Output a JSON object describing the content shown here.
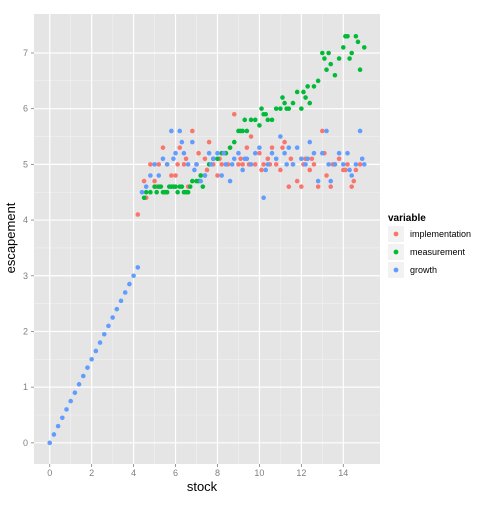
{
  "chart_data": {
    "type": "scatter",
    "xlabel": "stock",
    "ylabel": "escapement",
    "xlim": [
      -0.75,
      15.75
    ],
    "ylim": [
      -0.38,
      7.7
    ],
    "x_ticks": [
      0,
      2,
      4,
      6,
      8,
      10,
      12,
      14
    ],
    "y_ticks": [
      0,
      1,
      2,
      3,
      4,
      5,
      6,
      7
    ],
    "grid": true,
    "legend": {
      "title": "variable",
      "position": "right"
    },
    "colors": {
      "panel": "#E5E5E5",
      "grid_major": "#FFFFFF",
      "grid_minor": "#F2F2F2",
      "implementation": "#F8766D",
      "measurement": "#00BA38",
      "growth": "#619CFF"
    },
    "series": [
      {
        "name": "implementation",
        "color": "#F8766D",
        "x": [
          4.2,
          4.5,
          4.6,
          4.8,
          5.0,
          5.2,
          5.4,
          5.6,
          5.8,
          6.0,
          6.2,
          6.4,
          6.6,
          6.8,
          7.0,
          7.2,
          7.4,
          7.6,
          7.8,
          8.0,
          8.2,
          8.4,
          8.6,
          8.8,
          9.0,
          9.2,
          9.4,
          9.6,
          9.8,
          10.0,
          10.2,
          10.4,
          10.6,
          10.8,
          11.0,
          11.2,
          11.4,
          11.6,
          11.8,
          12.0,
          12.2,
          12.4,
          12.6,
          12.8,
          13.0,
          13.2,
          13.4,
          13.6,
          13.8,
          14.0,
          14.2,
          14.4,
          14.6,
          14.8,
          5.1,
          5.5,
          6.1,
          6.5,
          7.1,
          7.5,
          8.1,
          8.5,
          9.1,
          9.5,
          10.1,
          10.5,
          11.1,
          11.5,
          12.1,
          12.5,
          13.1,
          13.5,
          14.1,
          14.5
        ],
        "y": [
          4.1,
          4.7,
          4.4,
          5.0,
          4.7,
          5.0,
          5.3,
          5.0,
          4.8,
          4.8,
          5.3,
          5.0,
          4.6,
          5.6,
          5.0,
          4.8,
          5.1,
          5.4,
          5.0,
          4.8,
          5.0,
          5.2,
          5.3,
          5.9,
          5.0,
          5.0,
          5.3,
          5.5,
          5.0,
          5.2,
          5.0,
          5.1,
          5.3,
          5.0,
          4.9,
          5.4,
          4.6,
          5.0,
          4.7,
          4.6,
          5.1,
          4.9,
          5.0,
          4.6,
          5.6,
          4.8,
          4.6,
          5.0,
          5.1,
          4.9,
          5.0,
          4.6,
          4.9,
          5.0,
          4.6,
          4.5,
          5.0,
          5.1,
          5.2,
          4.9,
          5.1,
          5.0,
          5.1,
          5.0,
          4.9,
          5.0,
          5.3,
          5.1,
          5.0,
          5.1,
          5.2,
          5.0,
          4.9,
          4.7
        ]
      },
      {
        "name": "measurement",
        "color": "#00BA38",
        "x": [
          4.5,
          4.6,
          4.8,
          5.0,
          5.2,
          5.4,
          5.6,
          5.8,
          6.0,
          6.2,
          6.4,
          6.6,
          6.8,
          7.0,
          7.2,
          7.4,
          7.6,
          7.8,
          8.0,
          8.2,
          8.4,
          8.6,
          8.8,
          9.0,
          9.2,
          9.4,
          9.6,
          9.8,
          10.0,
          10.2,
          10.4,
          10.6,
          10.8,
          11.0,
          11.2,
          11.4,
          11.6,
          11.8,
          12.0,
          12.2,
          12.4,
          12.6,
          12.8,
          13.0,
          13.2,
          13.4,
          13.6,
          13.8,
          14.0,
          14.2,
          14.4,
          14.6,
          14.8,
          15.0,
          5.1,
          5.3,
          5.5,
          5.7,
          5.9,
          6.1,
          6.3,
          6.5,
          6.7,
          7.1,
          7.3,
          9.1,
          9.3,
          10.1,
          10.3,
          11.1,
          11.3,
          12.1,
          12.3,
          13.1,
          13.3,
          14.1,
          14.3,
          14.7
        ],
        "y": [
          4.4,
          4.5,
          4.5,
          4.6,
          4.6,
          4.5,
          4.5,
          4.6,
          4.6,
          4.6,
          4.5,
          4.5,
          4.7,
          4.7,
          4.8,
          4.8,
          5.0,
          5.1,
          5.1,
          5.2,
          5.2,
          5.3,
          5.4,
          5.6,
          5.6,
          5.6,
          5.8,
          5.8,
          5.7,
          5.9,
          5.8,
          5.8,
          6.0,
          6.0,
          6.1,
          6.0,
          6.1,
          6.3,
          6.0,
          6.2,
          6.1,
          6.4,
          6.5,
          7.0,
          6.7,
          6.8,
          6.6,
          6.9,
          7.1,
          7.3,
          7.0,
          7.3,
          6.7,
          7.1,
          4.5,
          4.6,
          4.5,
          4.6,
          4.6,
          4.5,
          4.6,
          4.5,
          4.6,
          4.7,
          4.6,
          5.6,
          5.8,
          6.0,
          5.9,
          6.2,
          6.0,
          6.3,
          6.4,
          6.9,
          7.0,
          7.3,
          6.9,
          7.2
        ]
      },
      {
        "name": "growth",
        "color": "#619CFF",
        "x": [
          0.0,
          0.2,
          0.4,
          0.6,
          0.8,
          1.0,
          1.2,
          1.4,
          1.6,
          1.8,
          2.0,
          2.2,
          2.4,
          2.6,
          2.8,
          3.0,
          3.2,
          3.4,
          3.6,
          3.8,
          4.0,
          4.2,
          4.4,
          4.6,
          4.8,
          5.0,
          5.2,
          5.4,
          5.6,
          5.8,
          6.0,
          6.2,
          6.4,
          6.6,
          6.8,
          7.0,
          7.2,
          7.4,
          7.6,
          7.8,
          8.0,
          8.2,
          8.4,
          8.6,
          8.8,
          9.0,
          9.2,
          9.4,
          9.6,
          9.8,
          10.0,
          10.2,
          10.4,
          10.6,
          10.8,
          11.0,
          11.2,
          11.4,
          11.6,
          11.8,
          12.0,
          12.2,
          12.4,
          12.6,
          12.8,
          13.0,
          13.2,
          13.4,
          13.6,
          13.8,
          14.0,
          14.2,
          14.4,
          14.6,
          14.8,
          15.0,
          5.9,
          6.3,
          6.9,
          7.7,
          8.3,
          8.7,
          9.3,
          10.3,
          11.3,
          12.3,
          13.3,
          14.3,
          14.9
        ],
        "y": [
          0.0,
          0.15,
          0.3,
          0.45,
          0.6,
          0.75,
          0.9,
          1.05,
          1.2,
          1.35,
          1.5,
          1.65,
          1.8,
          1.95,
          2.1,
          2.25,
          2.4,
          2.55,
          2.7,
          2.85,
          3.0,
          3.15,
          4.5,
          4.6,
          4.8,
          5.0,
          4.8,
          5.1,
          5.0,
          5.6,
          5.2,
          5.6,
          5.2,
          5.0,
          5.4,
          5.0,
          4.7,
          4.8,
          5.2,
          5.1,
          5.2,
          4.8,
          5.0,
          4.7,
          5.1,
          5.2,
          4.9,
          5.1,
          5.0,
          5.2,
          5.3,
          4.4,
          5.0,
          5.2,
          5.1,
          5.5,
          5.2,
          5.3,
          5.0,
          5.3,
          5.1,
          5.0,
          5.4,
          5.2,
          4.7,
          5.2,
          5.6,
          4.7,
          5.0,
          5.2,
          5.0,
          5.2,
          4.8,
          5.0,
          5.6,
          5.0,
          5.1,
          5.4,
          4.9,
          5.0,
          5.2,
          5.0,
          5.1,
          4.9,
          5.0,
          5.1,
          5.0,
          4.9,
          5.1
        ]
      }
    ]
  }
}
